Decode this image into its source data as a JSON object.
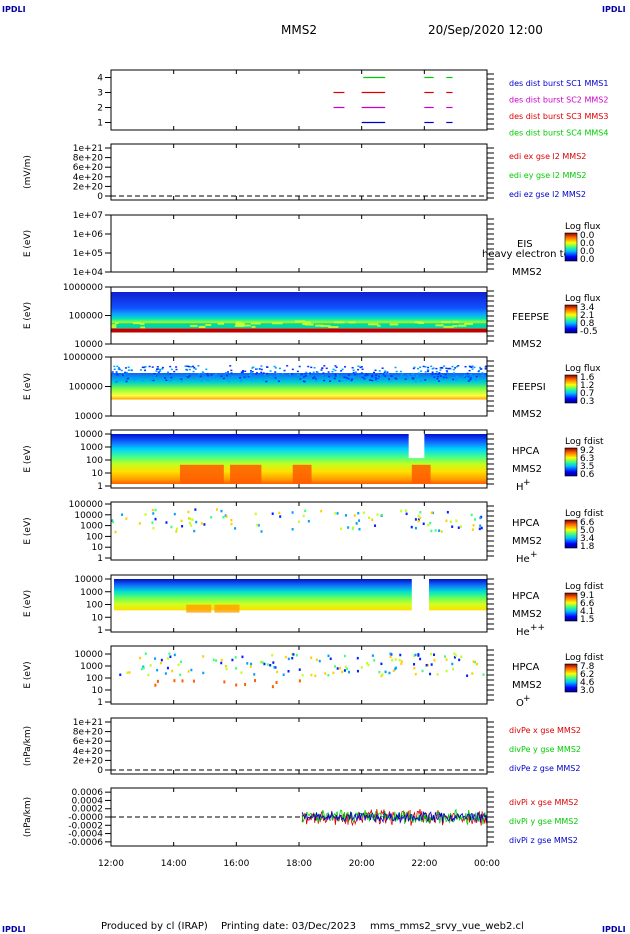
{
  "header": {
    "corner_label": "IPDLI",
    "probe": "MMS2",
    "datetime": "20/Sep/2020 12:00"
  },
  "footer": {
    "produced_by": "Produced by cl (IRAP)",
    "printing_date": "Printing date: 03/Dec/2023",
    "file_name": "mms_mms2_srvy_vue_web2.cl"
  },
  "x_axis": {
    "ticks": [
      "12:00",
      "14:00",
      "16:00",
      "18:00",
      "20:00",
      "22:00",
      "00:00"
    ],
    "tick_hours": [
      12,
      14,
      16,
      18,
      20,
      22,
      24
    ]
  },
  "colors": {
    "red": "#dd0000",
    "green": "#00cc00",
    "blue": "#0000cc",
    "magenta": "#cc00cc",
    "dark_red": "#cc0000"
  },
  "chart_data": [
    {
      "type": "scatter",
      "id": "burst",
      "ylabel": "",
      "ylim": [
        0.5,
        4.5
      ],
      "yticks": [
        "1",
        "2",
        "3",
        "4"
      ],
      "legend": [
        {
          "label": "des dist burst SC1 MMS1",
          "color": "#0000cc"
        },
        {
          "label": "des dist burst SC2 MMS2",
          "color": "#cc00cc"
        },
        {
          "label": "des dist burst SC3 MMS3",
          "color": "#dd0000"
        },
        {
          "label": "des dist burst SC4 MMS4",
          "color": "#00cc00"
        }
      ],
      "intervals": [
        {
          "sc": 4,
          "start": 20.05,
          "end": 20.75
        },
        {
          "sc": 4,
          "start": 22.0,
          "end": 22.3
        },
        {
          "sc": 4,
          "start": 22.7,
          "end": 22.9
        },
        {
          "sc": 3,
          "start": 19.1,
          "end": 19.45
        },
        {
          "sc": 3,
          "start": 20.0,
          "end": 20.75
        },
        {
          "sc": 3,
          "start": 22.0,
          "end": 22.3
        },
        {
          "sc": 3,
          "start": 22.7,
          "end": 22.9
        },
        {
          "sc": 2,
          "start": 19.1,
          "end": 19.45
        },
        {
          "sc": 2,
          "start": 20.0,
          "end": 20.75
        },
        {
          "sc": 2,
          "start": 22.0,
          "end": 22.3
        },
        {
          "sc": 2,
          "start": 22.7,
          "end": 22.9
        },
        {
          "sc": 1,
          "start": 20.0,
          "end": 20.75
        },
        {
          "sc": 1,
          "start": 22.0,
          "end": 22.3
        },
        {
          "sc": 1,
          "start": 22.7,
          "end": 22.9
        }
      ]
    },
    {
      "type": "line",
      "id": "edi",
      "ylabel": "(mV/m)",
      "yticks": [
        "0",
        "2e+20",
        "4e+20",
        "6e+20",
        "8e+20",
        "1e+21"
      ],
      "legend": [
        {
          "label": "edi ex gse l2 MMS2",
          "color": "#dd0000"
        },
        {
          "label": "edi ey gse l2 MMS2",
          "color": "#00cc00"
        },
        {
          "label": "edi ez gse l2 MMS2",
          "color": "#0000cc"
        }
      ]
    },
    {
      "type": "heatmap",
      "id": "eis",
      "ylabel": "E (eV)",
      "yticks": [
        "1e+04",
        "1e+05",
        "1e+06",
        "1e+07"
      ],
      "side_labels": [
        "EIS",
        "MMS2"
      ],
      "overlay_text": "heavy electron to",
      "colorbar": {
        "title": "Log flux",
        "ticks": [
          "0.0",
          "0.0",
          "0.0",
          "0.0"
        ]
      }
    },
    {
      "type": "heatmap",
      "id": "feepse",
      "ylabel": "E (eV)",
      "yticks": [
        "10000",
        "100000",
        "1000000"
      ],
      "side_labels": [
        "FEEPSE",
        "MMS2"
      ],
      "colorbar": {
        "title": "Log flux",
        "ticks": [
          "3.4",
          "2.1",
          "0.8",
          "-0.5"
        ]
      }
    },
    {
      "type": "heatmap",
      "id": "feepsi",
      "ylabel": "E (eV)",
      "yticks": [
        "10000",
        "100000",
        "1000000"
      ],
      "side_labels": [
        "FEEPSI",
        "MMS2"
      ],
      "colorbar": {
        "title": "Log flux",
        "ticks": [
          "1.6",
          "1.2",
          "0.7",
          "0.3"
        ]
      }
    },
    {
      "type": "heatmap",
      "id": "hpca_h",
      "ylabel": "E (eV)",
      "yticks": [
        "1",
        "10",
        "100",
        "1000",
        "10000"
      ],
      "side_labels": [
        "HPCA",
        "MMS2"
      ],
      "species": "H",
      "species_sup": "+",
      "colorbar": {
        "title": "Log fdist",
        "ticks": [
          "9.2",
          "6.3",
          "3.5",
          "0.6"
        ]
      }
    },
    {
      "type": "heatmap",
      "id": "hpca_he",
      "ylabel": "E (eV)",
      "yticks": [
        "1",
        "10",
        "100",
        "1000",
        "10000",
        "100000"
      ],
      "side_labels": [
        "HPCA",
        "MMS2"
      ],
      "species": "He",
      "species_sup": "+",
      "colorbar": {
        "title": "Log fdist",
        "ticks": [
          "6.6",
          "5.0",
          "3.4",
          "1.8"
        ]
      }
    },
    {
      "type": "heatmap",
      "id": "hpca_hepp",
      "ylabel": "E (eV)",
      "yticks": [
        "1",
        "10",
        "100",
        "1000",
        "10000"
      ],
      "side_labels": [
        "HPCA",
        "MMS2"
      ],
      "species": "He",
      "species_sup": "++",
      "colorbar": {
        "title": "Log fdist",
        "ticks": [
          "9.1",
          "6.6",
          "4.1",
          "1.5"
        ]
      }
    },
    {
      "type": "heatmap",
      "id": "hpca_o",
      "ylabel": "E (eV)",
      "yticks": [
        "1",
        "10",
        "100",
        "1000",
        "10000"
      ],
      "side_labels": [
        "HPCA",
        "MMS2"
      ],
      "species": "O",
      "species_sup": "+",
      "colorbar": {
        "title": "Log fdist",
        "ticks": [
          "7.8",
          "6.2",
          "4.6",
          "3.0"
        ]
      }
    },
    {
      "type": "line",
      "id": "divpe",
      "ylabel": "(nPa/km)",
      "yticks": [
        "0",
        "2e+20",
        "4e+20",
        "6e+20",
        "8e+20",
        "1e+21"
      ],
      "legend": [
        {
          "label": "divPe x gse MMS2",
          "color": "#dd0000"
        },
        {
          "label": "divPe y gse MMS2",
          "color": "#00cc00"
        },
        {
          "label": "divPe z gse MMS2",
          "color": "#0000cc"
        }
      ]
    },
    {
      "type": "line",
      "id": "divpi",
      "ylabel": "(nPa/km)",
      "yticks": [
        "-0.0006",
        "-0.0004",
        "-0.0002",
        "-0.0000",
        "0.0002",
        "0.0004",
        "0.0006"
      ],
      "ylim": [
        -0.0007,
        0.0007
      ],
      "data_start_hour": 18.1,
      "legend": [
        {
          "label": "divPi x gse MMS2",
          "color": "#dd0000"
        },
        {
          "label": "divPi y gse MMS2",
          "color": "#00cc00"
        },
        {
          "label": "divPi z gse MMS2",
          "color": "#0000cc"
        }
      ]
    }
  ]
}
